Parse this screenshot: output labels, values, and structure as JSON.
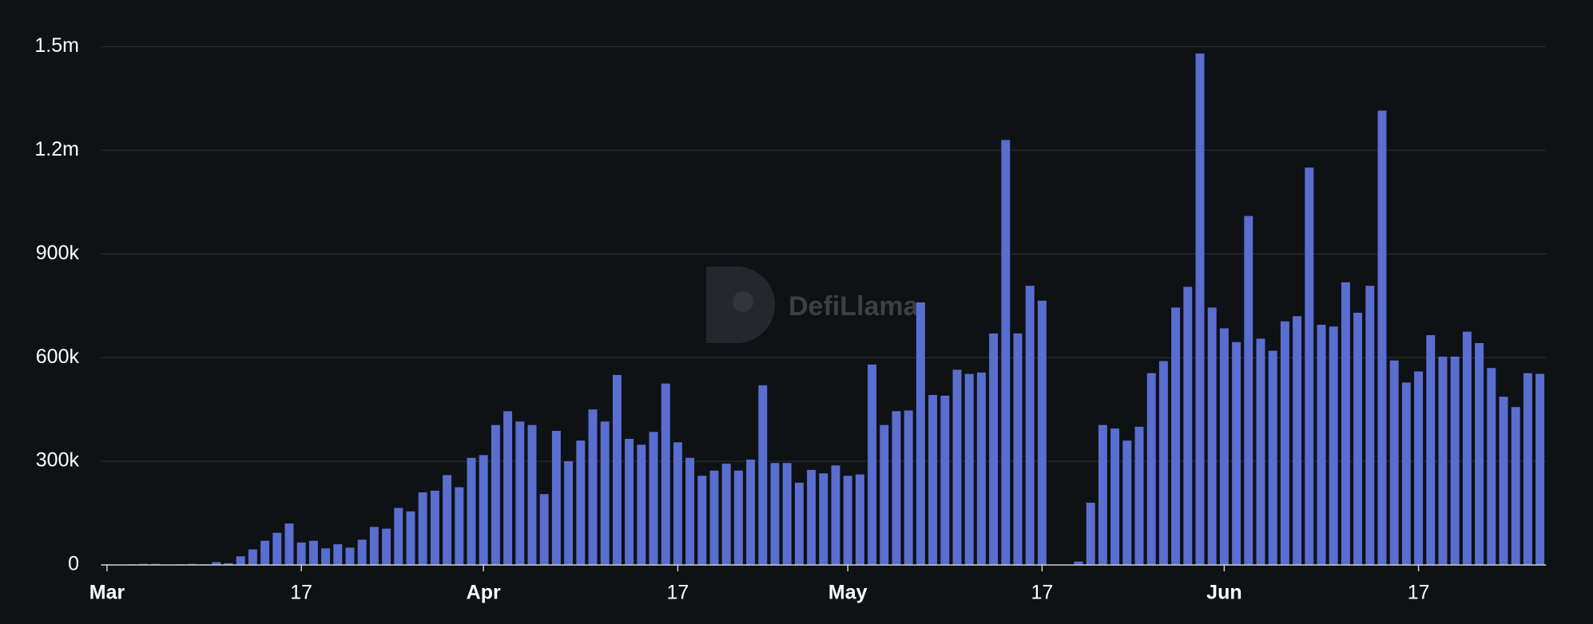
{
  "chart_data": {
    "type": "bar",
    "watermark": "DefiLlama",
    "color": "#5a6ed0",
    "categories": [
      "Mar",
      null,
      null,
      null,
      null,
      null,
      null,
      null,
      null,
      null,
      null,
      null,
      null,
      null,
      null,
      null,
      "17",
      null,
      null,
      null,
      null,
      null,
      null,
      null,
      null,
      null,
      null,
      null,
      null,
      null,
      null,
      "Apr",
      null,
      null,
      null,
      null,
      null,
      null,
      null,
      null,
      null,
      null,
      null,
      null,
      null,
      null,
      null,
      "17",
      null,
      null,
      null,
      null,
      null,
      null,
      null,
      null,
      null,
      null,
      null,
      null,
      null,
      "May",
      null,
      null,
      null,
      null,
      null,
      null,
      null,
      null,
      null,
      null,
      null,
      null,
      null,
      null,
      null,
      "17",
      null,
      null,
      null,
      null,
      null,
      null,
      null,
      null,
      null,
      null,
      null,
      null,
      null,
      null,
      "Jun",
      null,
      null,
      null,
      null,
      null,
      null,
      null,
      null,
      null,
      null,
      null,
      null,
      null,
      null,
      null,
      "17",
      null,
      null,
      null,
      null,
      null,
      null,
      null,
      null,
      null,
      null
    ],
    "values": [
      2000,
      1000,
      2000,
      3000,
      3000,
      1000,
      2000,
      3000,
      2000,
      8000,
      5000,
      25000,
      45000,
      70000,
      93000,
      120000,
      65000,
      70000,
      48000,
      60000,
      50000,
      73000,
      110000,
      105000,
      165000,
      155000,
      210000,
      215000,
      260000,
      225000,
      310000,
      318000,
      405000,
      445000,
      415000,
      405000,
      205000,
      388000,
      300000,
      360000,
      450000,
      415000,
      550000,
      365000,
      348000,
      385000,
      525000,
      355000,
      310000,
      258000,
      273000,
      293000,
      273000,
      305000,
      520000,
      295000,
      295000,
      238000,
      275000,
      265000,
      288000,
      258000,
      262000,
      580000,
      405000,
      445000,
      447000,
      760000,
      492000,
      490000,
      565000,
      553000,
      557000,
      670000,
      1230000,
      670000,
      808000,
      765000,
      0,
      0,
      10000,
      180000,
      405000,
      395000,
      360000,
      400000,
      555000,
      590000,
      745000,
      805000,
      1480000,
      745000,
      685000,
      645000,
      1010000,
      655000,
      620000,
      705000,
      720000,
      1150000,
      695000,
      690000,
      818000,
      730000,
      808000,
      1315000,
      592000,
      528000,
      560000,
      665000,
      603000,
      603000,
      675000,
      642000,
      570000,
      487000,
      457000,
      555000,
      553000
    ],
    "ylim": [
      0,
      1500000
    ],
    "yticks": [
      0,
      {
        "value": 300000,
        "label": "300k"
      },
      {
        "value": 600000,
        "label": "600k"
      },
      {
        "value": 900000,
        "label": "900k"
      },
      {
        "value": 1200000,
        "label": "1.2m"
      },
      {
        "value": 1500000,
        "label": "1.5m"
      }
    ],
    "grid": true
  }
}
